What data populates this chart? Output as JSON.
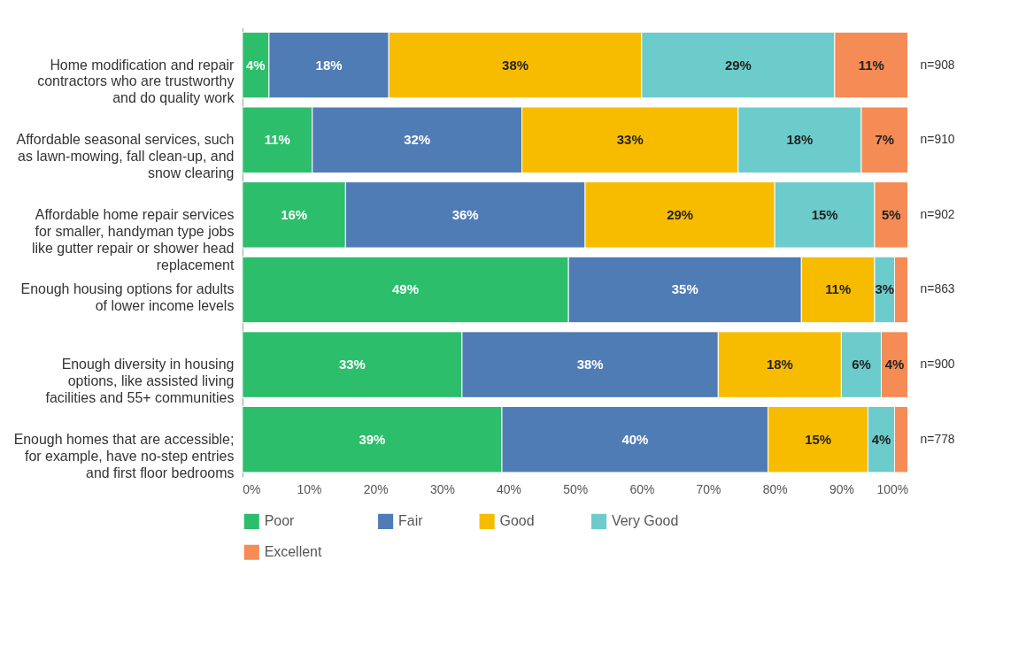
{
  "chart_data": {
    "type": "bar",
    "orientation": "horizontal",
    "stacked": true,
    "categories": [
      "Home modification and repair contractors who are trustworthy and do quality work",
      "Affordable seasonal services, such as lawn-mowing, fall clean-up, and snow clearing",
      "Affordable home repair services for smaller, handyman type jobs like gutter repair or shower head replacement",
      "Enough housing options for adults of lower income levels",
      "Enough diversity in housing options, like assisted living facilities and 55+ communities",
      "Enough homes that are accessible; for example, have no-step entries and first floor bedrooms"
    ],
    "series": [
      {
        "name": "Poor",
        "color": "#2dbe6c",
        "values": [
          4,
          10.5,
          15.5,
          49,
          33,
          39
        ],
        "value_labels": [
          "4%",
          "11%",
          "16%",
          "49%",
          "33%",
          "39%"
        ]
      },
      {
        "name": "Fair",
        "color": "#507cb6",
        "values": [
          18,
          31.5,
          36,
          35,
          38.5,
          40
        ],
        "value_labels": [
          "18%",
          "32%",
          "36%",
          "35%",
          "38%",
          "40%"
        ]
      },
      {
        "name": "Good",
        "color": "#f7bc00",
        "values": [
          38,
          32.5,
          28.5,
          11,
          18.5,
          15
        ],
        "value_labels": [
          "38%",
          "33%",
          "29%",
          "11%",
          "18%",
          "15%"
        ]
      },
      {
        "name": "Very Good",
        "color": "#6ccbcb",
        "values": [
          29,
          18.5,
          15,
          3,
          6,
          4
        ],
        "value_labels": [
          "29%",
          "18%",
          "15%",
          "3%",
          "6%",
          "4%"
        ]
      },
      {
        "name": "Excellent",
        "color": "#f58b55",
        "values": [
          11,
          7,
          5,
          2,
          4,
          2
        ],
        "value_labels": [
          "11%",
          "7%",
          "5%",
          null,
          "4%",
          null
        ]
      }
    ],
    "xlim": [
      0,
      100
    ],
    "xticks": [
      {
        "value": 0,
        "label": "0%"
      },
      {
        "value": 10,
        "label": "10%"
      },
      {
        "value": 20,
        "label": "20%"
      },
      {
        "value": 30,
        "label": "30%"
      },
      {
        "value": 40,
        "label": "40%"
      },
      {
        "value": 50,
        "label": "50%"
      },
      {
        "value": 60,
        "label": "60%"
      },
      {
        "value": 70,
        "label": "70%"
      },
      {
        "value": 80,
        "label": "80%"
      },
      {
        "value": 90,
        "label": "90%"
      },
      {
        "value": 100,
        "label": "100%"
      }
    ],
    "annotations": [
      "n=908",
      "n=910",
      "n=902",
      "n=863",
      "n=900",
      "n=778"
    ],
    "grid": false,
    "legend": "bottom"
  }
}
